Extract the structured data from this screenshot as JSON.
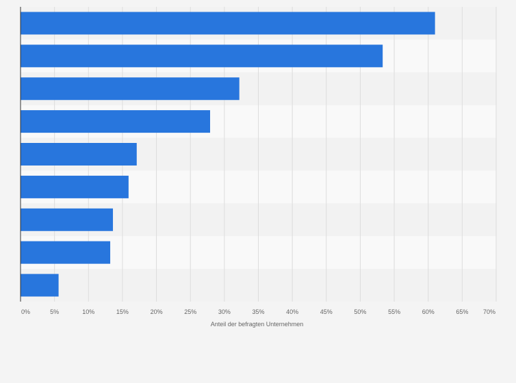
{
  "chart_data": {
    "type": "bar",
    "orientation": "horizontal",
    "title": "",
    "xlabel": "Anteil der befragten Unternehmen",
    "ylabel": "",
    "xlim": [
      0,
      70
    ],
    "x_ticks": [
      "0%",
      "5%",
      "10%",
      "15%",
      "20%",
      "25%",
      "30%",
      "35%",
      "40%",
      "45%",
      "50%",
      "55%",
      "60%",
      "65%",
      "70%"
    ],
    "categories": [
      "",
      "",
      "",
      "",
      "",
      "",
      "",
      "",
      ""
    ],
    "values": [
      61,
      53.3,
      32.2,
      27.9,
      17.1,
      15.9,
      13.6,
      13.2,
      5.6
    ],
    "grid": true,
    "legend": "none",
    "colors": {
      "bar": "#2876dd",
      "band_dark": "#f2f2f2",
      "band_light": "#f9f9f9",
      "grid": "#dddddd",
      "axis": "#333333",
      "text": "#666666",
      "background": "#f4f4f4"
    }
  }
}
